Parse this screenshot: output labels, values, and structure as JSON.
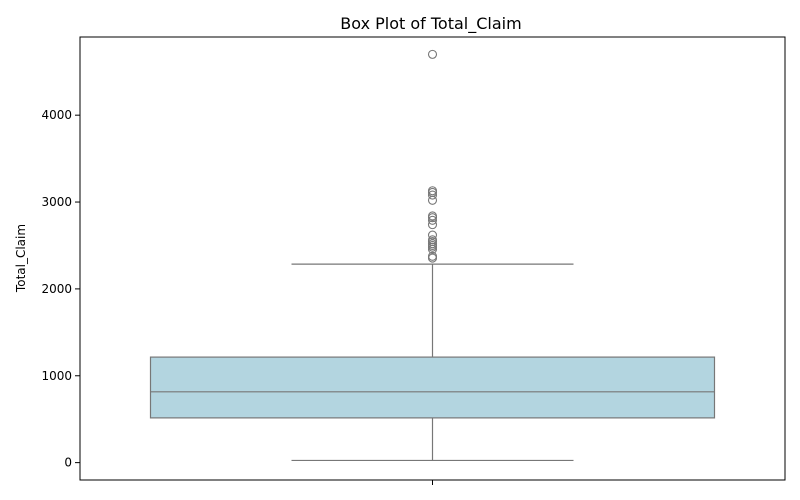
{
  "chart_data": {
    "type": "box",
    "title": "Box Plot of Total_Claim",
    "xlabel": "",
    "ylabel": "Total_Claim",
    "ylim": [
      -200,
      4900
    ],
    "yticks": [
      0,
      1000,
      2000,
      3000,
      4000
    ],
    "grid": false,
    "box": {
      "whisker_low": 25,
      "q1": 515,
      "median": 815,
      "q3": 1215,
      "whisker_high": 2285
    },
    "outliers": [
      2355,
      2375,
      2455,
      2480,
      2500,
      2520,
      2545,
      2565,
      2620,
      2740,
      2790,
      2820,
      2840,
      3020,
      3080,
      3110,
      3130,
      4700
    ],
    "colors": {
      "box_fill": "#b3d5e0",
      "line": "#777777",
      "axis": "#000000"
    }
  }
}
